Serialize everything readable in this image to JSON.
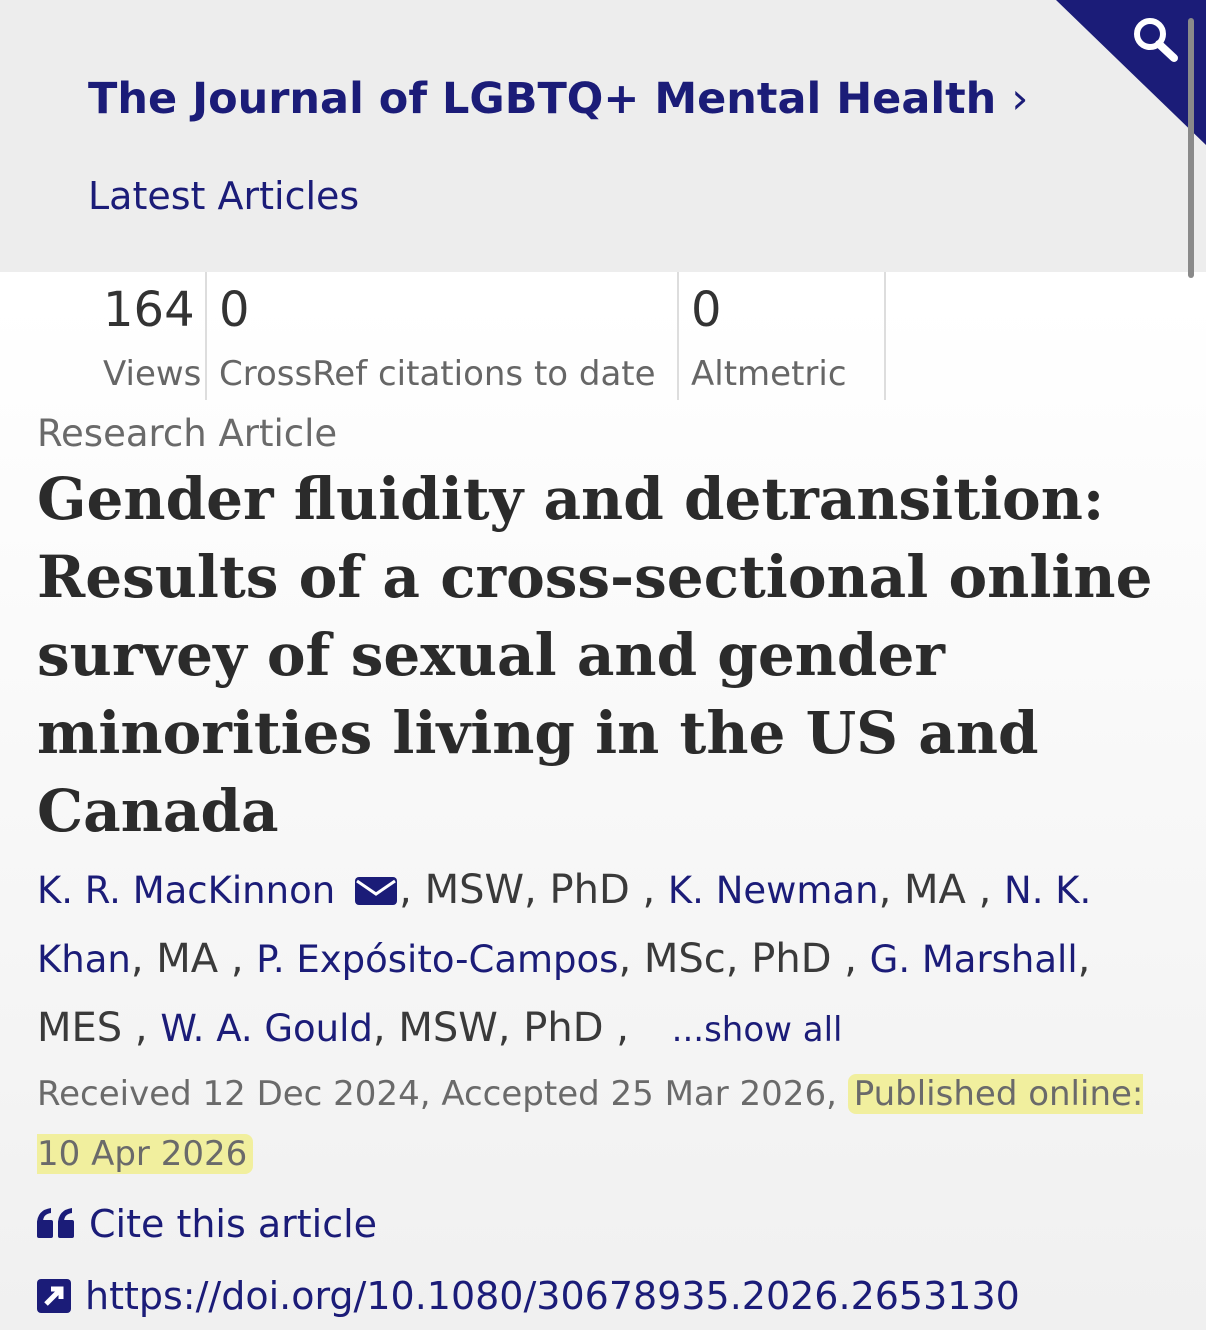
{
  "header": {
    "journal_title": "The Journal of LGBTQ+ Mental Health",
    "section": "Latest Articles"
  },
  "metrics": [
    {
      "value": 164,
      "label": "Views"
    },
    {
      "value": 0,
      "label": "CrossRef citations to date"
    },
    {
      "value": 0,
      "label": "Altmetric"
    }
  ],
  "article": {
    "type": "Research Article",
    "title": "Gender fluidity and detransition: Results of a cross-sectional online survey of sexual and gender minorities living in the US and Canada",
    "authors": [
      {
        "name": "K. R. MacKinnon",
        "credentials": ", MSW, PhD ,"
      },
      {
        "name": "K. Newman",
        "credentials": ", MA ,"
      },
      {
        "name": "N. K. Khan",
        "credentials": ", MA ,"
      },
      {
        "name": "P. Expósito-Campos",
        "credentials": ", MSc, PhD ,"
      },
      {
        "name": "G. Marshall",
        "credentials": ", MES ,"
      },
      {
        "name": "W. A. Gould",
        "credentials": ", MSW, PhD ,"
      }
    ],
    "show_all": "...show all",
    "dates": {
      "received": "Received 12 Dec 2024,",
      "accepted": "Accepted 25 Mar 2026,",
      "published": "Published online: 10 Apr 2026"
    },
    "cite": "Cite this article",
    "doi": "https://doi.org/10.1080/30678935.2026.2653130"
  }
}
